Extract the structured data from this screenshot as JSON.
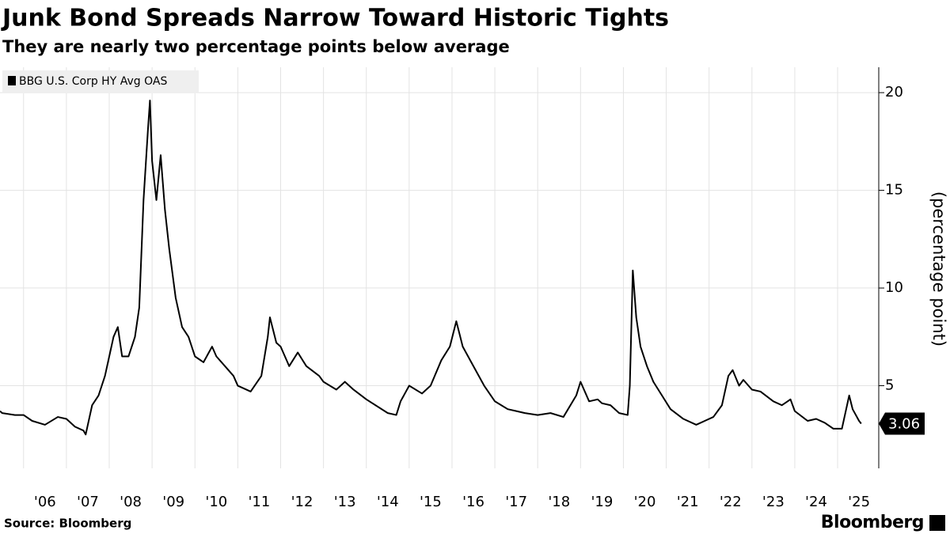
{
  "chart_data": {
    "type": "line",
    "title": "Junk Bond Spreads Narrow Toward Historic Tights",
    "subtitle": "They are nearly two percentage points below average",
    "y_axis_label": "(percentage point)",
    "source": "Source: Bloomberg",
    "brand": "Bloomberg",
    "legend": "top-left",
    "grid": true,
    "x": [
      2005.45,
      2005.5,
      2005.8,
      2006.0,
      2006.2,
      2006.5,
      2006.8,
      2007.0,
      2007.2,
      2007.4,
      2007.45,
      2007.6,
      2007.75,
      2007.9,
      2008.0,
      2008.1,
      2008.2,
      2008.3,
      2008.45,
      2008.6,
      2008.7,
      2008.8,
      2008.9,
      2008.95,
      2009.0,
      2009.1,
      2009.2,
      2009.3,
      2009.4,
      2009.55,
      2009.7,
      2009.85,
      2010.0,
      2010.2,
      2010.4,
      2010.5,
      2010.7,
      2010.9,
      2011.0,
      2011.3,
      2011.55,
      2011.7,
      2011.75,
      2011.9,
      2012.0,
      2012.2,
      2012.4,
      2012.6,
      2012.9,
      2013.0,
      2013.3,
      2013.5,
      2013.7,
      2014.0,
      2014.5,
      2014.7,
      2014.8,
      2015.0,
      2015.3,
      2015.5,
      2015.75,
      2015.95,
      2016.1,
      2016.25,
      2016.5,
      2016.75,
      2017.0,
      2017.3,
      2017.5,
      2017.7,
      2018.0,
      2018.3,
      2018.6,
      2018.9,
      2019.0,
      2019.2,
      2019.4,
      2019.5,
      2019.7,
      2019.9,
      2020.1,
      2020.15,
      2020.22,
      2020.3,
      2020.4,
      2020.55,
      2020.7,
      2020.9,
      2021.1,
      2021.4,
      2021.7,
      2021.9,
      2022.1,
      2022.3,
      2022.45,
      2022.55,
      2022.7,
      2022.8,
      2023.0,
      2023.2,
      2023.5,
      2023.7,
      2023.9,
      2024.0,
      2024.3,
      2024.5,
      2024.7,
      2024.9,
      2025.1,
      2025.27,
      2025.35,
      2025.5,
      2025.55
    ],
    "series": [
      {
        "name": "BBG U.S. Corp HY Avg OAS",
        "color": "#000000",
        "values": [
          3.7,
          3.6,
          3.5,
          3.5,
          3.2,
          3.0,
          3.4,
          3.3,
          2.9,
          2.7,
          2.5,
          4.0,
          4.5,
          5.5,
          6.5,
          7.5,
          8.0,
          6.5,
          6.5,
          7.5,
          9.0,
          14.5,
          18.0,
          19.6,
          16.5,
          14.5,
          16.8,
          14.0,
          12.0,
          9.5,
          8.0,
          7.5,
          6.5,
          6.2,
          7.0,
          6.5,
          6.0,
          5.5,
          5.0,
          4.7,
          5.5,
          7.5,
          8.5,
          7.2,
          7.0,
          6.0,
          6.7,
          6.0,
          5.5,
          5.2,
          4.8,
          5.2,
          4.8,
          4.3,
          3.6,
          3.5,
          4.2,
          5.0,
          4.6,
          5.0,
          6.3,
          7.0,
          8.3,
          7.0,
          6.0,
          5.0,
          4.2,
          3.8,
          3.7,
          3.6,
          3.5,
          3.6,
          3.4,
          4.5,
          5.2,
          4.2,
          4.3,
          4.1,
          4.0,
          3.6,
          3.5,
          5.0,
          10.9,
          8.5,
          7.0,
          6.0,
          5.2,
          4.5,
          3.8,
          3.3,
          3.0,
          3.2,
          3.4,
          4.0,
          5.5,
          5.8,
          5.0,
          5.3,
          4.8,
          4.7,
          4.2,
          4.0,
          4.3,
          3.7,
          3.2,
          3.3,
          3.1,
          2.8,
          2.8,
          4.5,
          3.8,
          3.2,
          3.06
        ]
      }
    ],
    "xlim": [
      2005.45,
      2025.96
    ],
    "xticks": [
      {
        "value": 2006,
        "label": "'06"
      },
      {
        "value": 2007,
        "label": "'07"
      },
      {
        "value": 2008,
        "label": "'08"
      },
      {
        "value": 2009,
        "label": "'09"
      },
      {
        "value": 2010,
        "label": "'10"
      },
      {
        "value": 2011,
        "label": "'11"
      },
      {
        "value": 2012,
        "label": "'12"
      },
      {
        "value": 2013,
        "label": "'13"
      },
      {
        "value": 2014,
        "label": "'14"
      },
      {
        "value": 2015,
        "label": "'15"
      },
      {
        "value": 2016,
        "label": "'16"
      },
      {
        "value": 2017,
        "label": "'17"
      },
      {
        "value": 2018,
        "label": "'18"
      },
      {
        "value": 2019,
        "label": "'19"
      },
      {
        "value": 2020,
        "label": "'20"
      },
      {
        "value": 2021,
        "label": "'21"
      },
      {
        "value": 2022,
        "label": "'22"
      },
      {
        "value": 2023,
        "label": "'23"
      },
      {
        "value": 2024,
        "label": "'24"
      },
      {
        "value": 2025,
        "label": "'25"
      }
    ],
    "ylim": [
      0.77,
      21.3
    ],
    "yticks": [
      5,
      10,
      15,
      20
    ]
  }
}
